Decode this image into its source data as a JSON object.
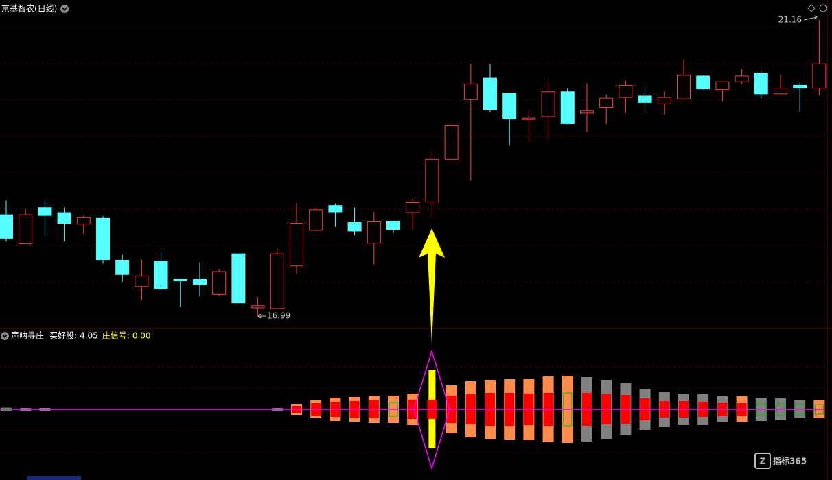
{
  "chart_data": [
    {
      "type": "candlestick",
      "title": "京基智农(日线)",
      "open": [
        18.42,
        18.01,
        18.52,
        18.45,
        18.29,
        18.37,
        17.78,
        17.41,
        17.77,
        17.51,
        17.51,
        17.3,
        17.87,
        17.11,
        17.1,
        17.7,
        18.2,
        18.55,
        18.31,
        18.02,
        18.33,
        18.45,
        18.6,
        19.2,
        20.04,
        20.34,
        20.13,
        19.76,
        19.8,
        20.15,
        19.85,
        19.93,
        20.07,
        20.09,
        19.98,
        20.05,
        20.37,
        20.18,
        20.29,
        20.41,
        20.12,
        20.24,
        20.2
      ],
      "high": [
        18.62,
        18.5,
        18.64,
        18.52,
        18.41,
        18.4,
        17.86,
        17.79,
        17.91,
        17.51,
        17.75,
        17.65,
        17.87,
        17.26,
        17.95,
        18.58,
        18.52,
        18.58,
        18.52,
        18.46,
        18.33,
        18.65,
        19.31,
        19.67,
        20.54,
        20.54,
        20.13,
        19.9,
        20.3,
        20.2,
        20.27,
        20.11,
        20.31,
        20.24,
        20.16,
        20.6,
        20.38,
        20.29,
        20.47,
        20.44,
        20.39,
        20.28,
        21.16
      ],
      "low": [
        18.04,
        18.01,
        18.13,
        18.04,
        18.15,
        17.73,
        17.48,
        17.22,
        17.34,
        17.12,
        17.27,
        17.27,
        17.18,
        16.99,
        17.1,
        17.58,
        18.2,
        18.25,
        18.13,
        17.72,
        18.16,
        18.2,
        18.39,
        19.2,
        18.9,
        19.86,
        19.39,
        19.44,
        19.48,
        19.69,
        19.59,
        19.69,
        19.85,
        19.85,
        19.83,
        20.05,
        20.18,
        20.01,
        20.26,
        20.06,
        20.12,
        19.86,
        20.1
      ],
      "close": [
        18.09,
        18.42,
        18.41,
        18.3,
        18.38,
        17.79,
        17.58,
        17.56,
        17.38,
        17.49,
        17.44,
        17.62,
        17.18,
        17.14,
        17.87,
        18.3,
        18.49,
        18.46,
        18.19,
        18.32,
        18.21,
        18.59,
        19.2,
        19.67,
        20.26,
        19.9,
        19.77,
        19.78,
        20.15,
        19.7,
        19.88,
        20.06,
        20.24,
        20.0,
        20.07,
        20.38,
        20.19,
        20.29,
        20.37,
        20.12,
        20.2,
        20.2,
        20.54
      ],
      "up_color": "#ff3c3c",
      "down_color": "#54ffff",
      "ylim": [
        16.83,
        21.44
      ],
      "high_label": 21.16,
      "low_label": 16.99
    },
    {
      "type": "sonar",
      "title": "声呐寻庄",
      "readouts": [
        {
          "name": "买好股:",
          "value": 4.05,
          "color": "#ffffff"
        },
        {
          "name": "庄信号:",
          "value": 0,
          "label": "0.00",
          "color": "#ffff00"
        }
      ],
      "outer": [
        2,
        2,
        2,
        null,
        null,
        null,
        null,
        null,
        null,
        null,
        null,
        null,
        null,
        null,
        2,
        8,
        13,
        17,
        18,
        20,
        20,
        23,
        57,
        35,
        41,
        43,
        44,
        45,
        48,
        49,
        47,
        43,
        38,
        30,
        25,
        23,
        23,
        19,
        19,
        17,
        16,
        13,
        13
      ],
      "outer_colors": [
        "#808080",
        "#808080",
        "#808080",
        null,
        null,
        null,
        null,
        null,
        null,
        null,
        null,
        null,
        null,
        null,
        "#808080",
        "#ff8c4a",
        "#ff8c4a",
        "#ff8c4a",
        "#ff8c4a",
        "#ff8c4a",
        "#ff8c4a",
        "#ff8c4a",
        "#ffff00",
        "#ff8c4a",
        "#ff8c4a",
        "#ff8c4a",
        "#ff8c4a",
        "#ff8c4a",
        "#ff8c4a",
        "#ff8c4a",
        "#808080",
        "#808080",
        "#808080",
        "#808080",
        "#808080",
        "#808080",
        "#808080",
        "#808080",
        "#ff8c4a",
        "#808080",
        "#808080",
        "#808080",
        "#ff8c4a"
      ],
      "inner": [
        2,
        null,
        null,
        null,
        null,
        null,
        null,
        null,
        null,
        null,
        null,
        null,
        null,
        null,
        null,
        5,
        9,
        11,
        12,
        13,
        10,
        14,
        14,
        20,
        22,
        24,
        24,
        23,
        24,
        24,
        24,
        22,
        21,
        16,
        12,
        12,
        11,
        10,
        10,
        9,
        9,
        8,
        7
      ],
      "inner_kinds": [
        "box",
        null,
        null,
        null,
        null,
        null,
        null,
        null,
        null,
        null,
        null,
        null,
        null,
        null,
        null,
        "fill",
        "fill",
        "fill",
        "fill",
        "fill",
        "box",
        "fill",
        "fill",
        "fill",
        "fill",
        "fill",
        "fill",
        "fill",
        "fill",
        "box",
        "fill",
        "fill",
        "fill",
        "fill",
        "fill",
        "fill",
        "fill",
        "fill",
        "fill",
        "box",
        "box",
        "box",
        "box"
      ],
      "inner_color": "#ff0000",
      "box_color": "#00c000",
      "line_color": "#ff00ff",
      "ylim": [
        -60,
        60
      ]
    }
  ],
  "watermark": "指标365"
}
